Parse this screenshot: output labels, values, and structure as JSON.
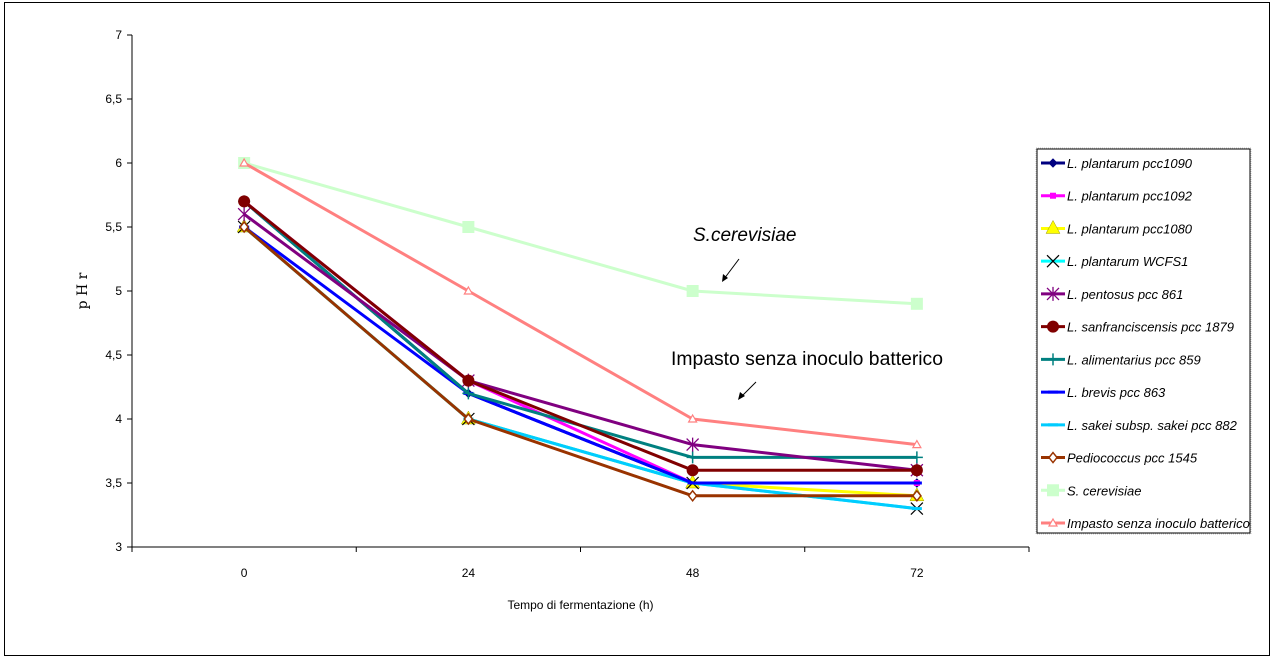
{
  "chart_data": {
    "type": "line",
    "title": "",
    "xlabel": "Tempo di fermentazione (h)",
    "ylabel": "p H r",
    "categories": [
      "0",
      "24",
      "48",
      "72"
    ],
    "ylim": [
      3,
      7
    ],
    "yticks": [
      "3",
      "3,5",
      "4",
      "4,5",
      "5",
      "5,5",
      "6",
      "6,5",
      "7"
    ],
    "grid": false,
    "legend_position": "right",
    "series": [
      {
        "name": "L. plantarum pcc1090",
        "values": [
          5.7,
          4.2,
          3.5,
          3.5
        ],
        "color": "#000080",
        "marker": "diamond",
        "italic": true
      },
      {
        "name": "L. plantarum pcc1092",
        "values": [
          5.7,
          4.3,
          3.5,
          3.5
        ],
        "color": "#ff00ff",
        "marker": "square",
        "italic": true
      },
      {
        "name": "L. plantarum pcc1080",
        "values": [
          5.5,
          4.0,
          3.5,
          3.4
        ],
        "color": "#ffff00",
        "marker": "triangle",
        "italic": true
      },
      {
        "name": "L. plantarum WCFS1",
        "values": [
          5.5,
          4.0,
          3.5,
          3.3
        ],
        "color": "#00ffff",
        "marker": "x",
        "italic": true
      },
      {
        "name": "L. pentosus pcc 861",
        "values": [
          5.6,
          4.3,
          3.8,
          3.6
        ],
        "color": "#800080",
        "marker": "star",
        "italic": true
      },
      {
        "name": "L. sanfranciscensis pcc 1879",
        "values": [
          5.7,
          4.3,
          3.6,
          3.6
        ],
        "color": "#800000",
        "marker": "circle",
        "italic": true
      },
      {
        "name": "L. alimentarius pcc 859",
        "values": [
          5.7,
          4.2,
          3.7,
          3.7
        ],
        "color": "#008080",
        "marker": "plus",
        "italic": true
      },
      {
        "name": "L. brevis pcc 863",
        "values": [
          5.5,
          4.2,
          3.5,
          3.5
        ],
        "color": "#0000ff",
        "marker": "dash",
        "italic": true
      },
      {
        "name": "L. sakei subsp. sakei pcc 882",
        "values": [
          5.5,
          4.0,
          3.5,
          3.3
        ],
        "color": "#00ccff",
        "marker": "dash",
        "italic": true
      },
      {
        "name": "Pediococcus pcc 1545",
        "values": [
          5.5,
          4.0,
          3.4,
          3.4
        ],
        "color": "#993300",
        "marker": "diamond-open",
        "italic": true
      },
      {
        "name": "S. cerevisiae",
        "values": [
          6.0,
          5.5,
          5.0,
          4.9
        ],
        "color": "#ccffcc",
        "marker": "square-big",
        "italic": true
      },
      {
        "name": "Impasto senza inoculo batterico",
        "values": [
          6.0,
          5.0,
          4.0,
          3.8
        ],
        "color": "#ff8080",
        "marker": "triangle-open",
        "italic": true
      }
    ],
    "annotations": [
      {
        "text": "S.cerevisiae",
        "italic": true
      },
      {
        "text": "Impasto senza inoculo batterico",
        "italic": false
      }
    ]
  }
}
